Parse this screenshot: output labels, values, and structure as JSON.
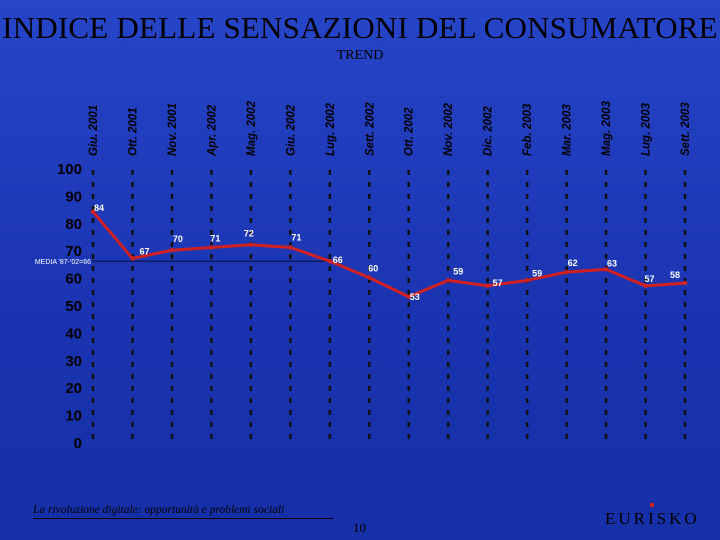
{
  "slide": {
    "title": "INDICE DELLE SENSAZIONI DEL CONSUMATORE",
    "subtitle": "TREND",
    "footer_text": "La rivoluzione digitale: opportunità e problemi sociali",
    "page_number": "10",
    "brand": "EURISKO"
  },
  "colors": {
    "background": "#1f39b8",
    "line": "#d02020",
    "text": "#000000",
    "labels": "#ffffff",
    "guides": "#111111"
  },
  "chart_data": {
    "type": "line",
    "title": "INDICE DELLE SENSAZIONI DEL CONSUMATORE",
    "subtitle": "TREND",
    "ylim": [
      0,
      100
    ],
    "yticks": [
      0,
      10,
      20,
      30,
      40,
      50,
      60,
      70,
      80,
      90,
      100
    ],
    "grid": false,
    "category_labels": [
      "Giu. 2001",
      "Ott. 2001",
      "Nov. 2001",
      "Apr. 2002",
      "Mag. 2002",
      "Giu. 2002",
      "Lug. 2002",
      "Sett. 2002",
      "Ott. 2002",
      "Nov. 2002",
      "Dic. 2002",
      "Feb. 2003",
      "Mar. 2003",
      "Mag. 2003",
      "Lug. 2003",
      "Sett. 2003"
    ],
    "x_positions": [
      0,
      1,
      2,
      3,
      4,
      5,
      6,
      7,
      8,
      9,
      10,
      11,
      12,
      13,
      14,
      15
    ],
    "values": [
      84,
      67,
      70,
      71,
      72,
      71,
      66,
      60,
      53,
      59,
      57,
      59,
      62,
      63,
      57,
      58
    ],
    "value_labels": [
      "84",
      "67",
      "70",
      "71",
      "72",
      "71",
      "66",
      "60",
      "53",
      "59",
      "57",
      "59",
      "62",
      "63",
      "57",
      "58"
    ],
    "reference_line": {
      "label": "MEDIA '87-'02=66",
      "value": 66
    }
  }
}
